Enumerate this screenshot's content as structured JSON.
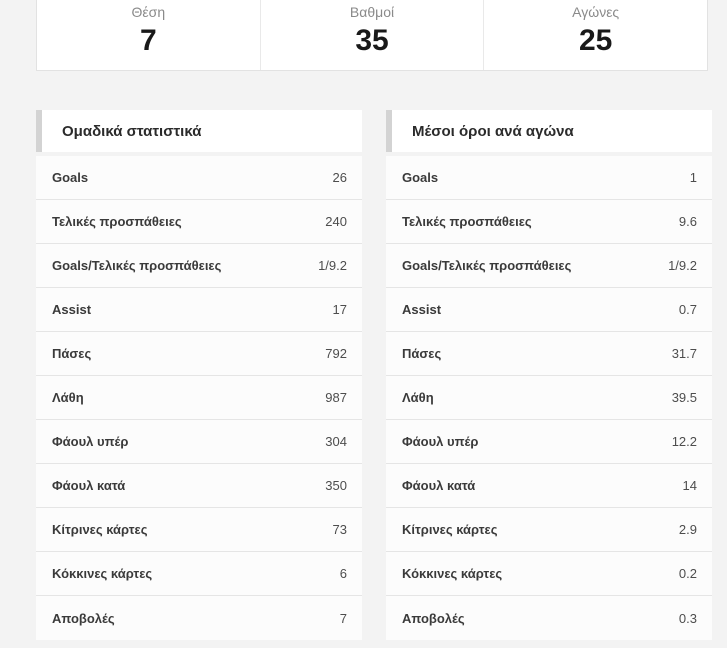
{
  "summary": {
    "items": [
      {
        "label": "Θέση",
        "value": "7"
      },
      {
        "label": "Βαθμοί",
        "value": "35"
      },
      {
        "label": "Αγώνες",
        "value": "25"
      }
    ]
  },
  "tables": [
    {
      "title": "Ομαδικά στατιστικά",
      "rows": [
        {
          "label": "Goals",
          "value": "26"
        },
        {
          "label": "Τελικές προσπάθειες",
          "value": "240"
        },
        {
          "label": "Goals/Τελικές προσπάθειες",
          "value": "1/9.2"
        },
        {
          "label": "Assist",
          "value": "17"
        },
        {
          "label": "Πάσες",
          "value": "792"
        },
        {
          "label": "Λάθη",
          "value": "987"
        },
        {
          "label": "Φάουλ υπέρ",
          "value": "304"
        },
        {
          "label": "Φάουλ κατά",
          "value": "350"
        },
        {
          "label": "Κίτρινες κάρτες",
          "value": "73"
        },
        {
          "label": "Κόκκινες κάρτες",
          "value": "6"
        },
        {
          "label": "Αποβολές",
          "value": "7"
        }
      ]
    },
    {
      "title": "Μέσοι όροι ανά αγώνα",
      "rows": [
        {
          "label": "Goals",
          "value": "1"
        },
        {
          "label": "Τελικές προσπάθειες",
          "value": "9.6"
        },
        {
          "label": "Goals/Τελικές προσπάθειες",
          "value": "1/9.2"
        },
        {
          "label": "Assist",
          "value": "0.7"
        },
        {
          "label": "Πάσες",
          "value": "31.7"
        },
        {
          "label": "Λάθη",
          "value": "39.5"
        },
        {
          "label": "Φάουλ υπέρ",
          "value": "12.2"
        },
        {
          "label": "Φάουλ κατά",
          "value": "14"
        },
        {
          "label": "Κίτρινες κάρτες",
          "value": "2.9"
        },
        {
          "label": "Κόκκινες κάρτες",
          "value": "0.2"
        },
        {
          "label": "Αποβολές",
          "value": "0.3"
        }
      ]
    }
  ],
  "colors": {
    "page_background": "#f3f3f3",
    "card_background": "#ffffff",
    "card_border": "#e2e2e2",
    "header_accent_stripe": "#d3d3d3",
    "row_separator": "#e5e5e5",
    "muted_label": "#8a8a8a",
    "value_text": "#191919"
  }
}
